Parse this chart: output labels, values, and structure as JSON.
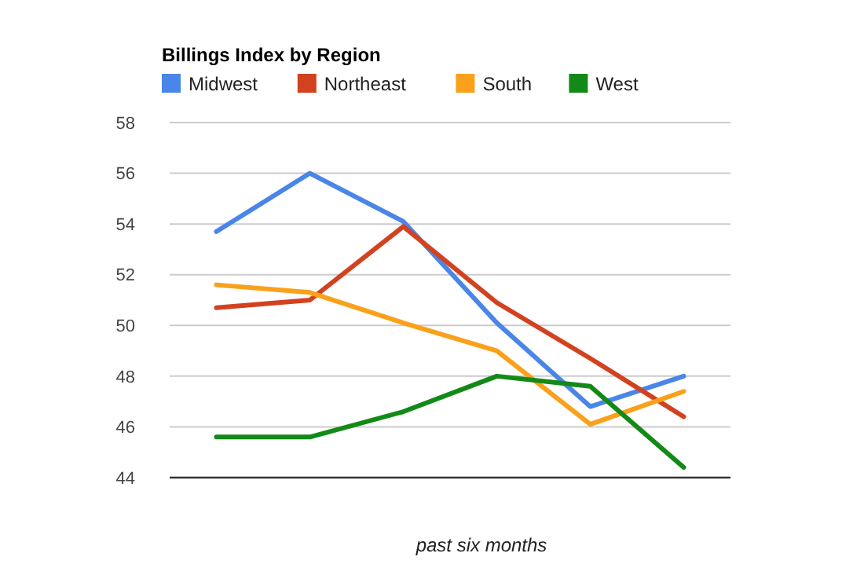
{
  "chart_data": {
    "type": "line",
    "title": "Billings Index by Region",
    "xlabel": "past six months",
    "categories": [
      null,
      null,
      null,
      null,
      null,
      null
    ],
    "series": [
      {
        "name": "Midwest",
        "color": "#4a86e8",
        "values": [
          53.7,
          56.0,
          54.1,
          50.1,
          46.8,
          48.0
        ]
      },
      {
        "name": "Northeast",
        "color": "#d2421f",
        "values": [
          50.7,
          51.0,
          53.9,
          50.9,
          48.7,
          46.4
        ]
      },
      {
        "name": "South",
        "color": "#f9a11b",
        "values": [
          51.6,
          51.3,
          50.1,
          49.0,
          46.1,
          47.4
        ]
      },
      {
        "name": "West",
        "color": "#138a17",
        "values": [
          45.6,
          45.6,
          46.6,
          48.0,
          47.6,
          44.4
        ]
      }
    ],
    "ylim": [
      44,
      58
    ],
    "yticks": [
      44,
      46,
      48,
      50,
      52,
      54,
      56,
      58
    ],
    "grid": "y",
    "legend": "top left",
    "marker": "none",
    "line_style": "solid"
  }
}
